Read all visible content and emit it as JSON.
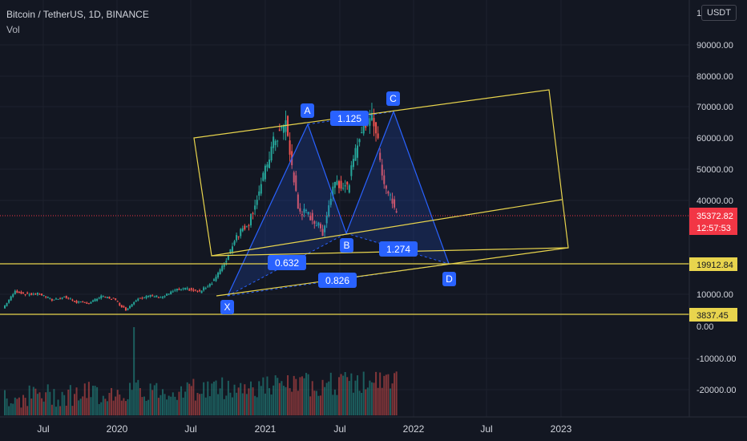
{
  "legend": {
    "title": "Bitcoin / TetherUS, 1D, BINANCE",
    "volume_label": "Vol"
  },
  "price_axis": {
    "currency": "USDT",
    "top_partial": "1C",
    "ticks": [
      "90000.00",
      "80000.00",
      "70000.00",
      "60000.00",
      "50000.00",
      "40000.00",
      "10000.00",
      "0.00",
      "-10000.00",
      "-20000.00"
    ]
  },
  "volume_axis": {
    "ticks": [
      "0.00",
      "-10000.00",
      "-20000.00"
    ]
  },
  "price_labels": {
    "last_price": "35372.82",
    "countdown": "12:57:53",
    "level_1": "19912.84",
    "level_2": "3837.45"
  },
  "time_axis": {
    "ticks": [
      "Jul",
      "2020",
      "Jul",
      "2021",
      "Jul",
      "2022",
      "Jul",
      "2023"
    ]
  },
  "pattern": {
    "points": [
      "X",
      "A",
      "B",
      "C",
      "D"
    ],
    "ratios": {
      "xb": "0.632",
      "ac": "1.125",
      "bd": "1.274",
      "xd": "0.826"
    }
  },
  "colors": {
    "background": "#131722",
    "grid": "#1e222d",
    "axis_text": "#d1d4dc",
    "up": "#26a69a",
    "down": "#ef5350",
    "pattern": "#2962ff",
    "channel": "#e8d44d",
    "last_price": "#f23645"
  },
  "chart_data": {
    "type": "candlestick",
    "symbol_text": "Bitcoin / TetherUS, 1D, BINANCE",
    "ylim": [
      0,
      100000
    ],
    "x_ticks": [
      "Jul",
      "2020",
      "Jul",
      "2021",
      "Jul",
      "2022",
      "Jul",
      "2023"
    ],
    "price_path": [
      [
        "2019-05",
        5500
      ],
      [
        "2019-06",
        11000
      ],
      [
        "2019-07",
        10000
      ],
      [
        "2019-08",
        10200
      ],
      [
        "2019-09",
        8200
      ],
      [
        "2019-10",
        9200
      ],
      [
        "2019-11",
        7500
      ],
      [
        "2019-12",
        7200
      ],
      [
        "2020-01",
        9300
      ],
      [
        "2020-02",
        8600
      ],
      [
        "2020-03",
        5000
      ],
      [
        "2020-04",
        8800
      ],
      [
        "2020-05",
        9500
      ],
      [
        "2020-06",
        9200
      ],
      [
        "2020-07",
        11300
      ],
      [
        "2020-08",
        11700
      ],
      [
        "2020-09",
        10800
      ],
      [
        "2020-10",
        13800
      ],
      [
        "2020-11",
        19700
      ],
      [
        "2020-12",
        29000
      ],
      [
        "2021-01",
        33100
      ],
      [
        "2021-02",
        45000
      ],
      [
        "2021-03",
        58900
      ],
      [
        "2021-04",
        64800
      ],
      [
        "2021-05",
        37300
      ],
      [
        "2021-06",
        35000
      ],
      [
        "2021-07",
        30000
      ],
      [
        "2021-08",
        47000
      ],
      [
        "2021-09",
        43800
      ],
      [
        "2021-10",
        61300
      ],
      [
        "2021-11",
        69000
      ],
      [
        "2021-12",
        46300
      ],
      [
        "2022-01",
        35372.82
      ]
    ],
    "harmonic_pattern": {
      "X": 10000,
      "A": 64800,
      "B": 30000,
      "C": 69000,
      "D": 19912.84,
      "ratios": {
        "XB": 0.632,
        "AC": 1.125,
        "BD": 1.274,
        "XD": 0.826
      }
    },
    "horizontal_levels": [
      19912.84,
      3837.45
    ],
    "last_price": 35372.82,
    "countdown": "12:57:53",
    "volume_axis": [
      0,
      -10000,
      -20000
    ]
  }
}
